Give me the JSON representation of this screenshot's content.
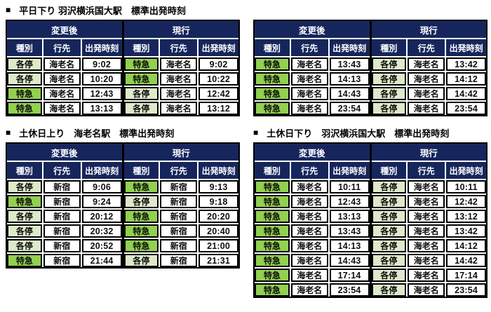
{
  "bullet": "■",
  "colors": {
    "header_navy": "#16265C",
    "express_green": "#92D050",
    "local_green": "#DDE9C9",
    "grid_black": "#000000"
  },
  "labels": {
    "after": "変更後",
    "current": "現行",
    "col_type": "種別",
    "col_dest": "行先",
    "col_time": "出発時刻"
  },
  "legend": {
    "express": "特急",
    "local": "各停"
  },
  "tables": [
    {
      "title": "平日下り 羽沢横浜国大駅　標準出発時刻",
      "rows": [
        [
          "各停",
          "海老名",
          "9:02",
          "特急",
          "海老名",
          "9:02"
        ],
        [
          "各停",
          "海老名",
          "10:20",
          "特急",
          "海老名",
          "10:22"
        ],
        [
          "特急",
          "海老名",
          "12:43",
          "各停",
          "海老名",
          "12:42"
        ],
        [
          "特急",
          "海老名",
          "13:13",
          "各停",
          "海老名",
          "13:12"
        ]
      ]
    },
    {
      "title": "",
      "rows": [
        [
          "特急",
          "海老名",
          "13:43",
          "各停",
          "海老名",
          "13:42"
        ],
        [
          "特急",
          "海老名",
          "14:13",
          "各停",
          "海老名",
          "14:12"
        ],
        [
          "特急",
          "海老名",
          "14:43",
          "各停",
          "海老名",
          "14:42"
        ],
        [
          "特急",
          "海老名",
          "23:54",
          "各停",
          "海老名",
          "23:54"
        ]
      ]
    },
    {
      "title": "土休日上り　海老名駅　標準出発時刻",
      "rows": [
        [
          "各停",
          "新宿",
          "9:06",
          "特急",
          "新宿",
          "9:13"
        ],
        [
          "特急",
          "新宿",
          "9:24",
          "各停",
          "新宿",
          "9:18"
        ],
        [
          "各停",
          "新宿",
          "20:12",
          "特急",
          "新宿",
          "20:20"
        ],
        [
          "各停",
          "新宿",
          "20:32",
          "特急",
          "新宿",
          "20:40"
        ],
        [
          "各停",
          "新宿",
          "20:52",
          "特急",
          "新宿",
          "21:00"
        ],
        [
          "特急",
          "新宿",
          "21:44",
          "各停",
          "新宿",
          "21:31"
        ]
      ]
    },
    {
      "title": "土休日下り　羽沢横浜国大駅　標準出発時刻",
      "rows": [
        [
          "特急",
          "海老名",
          "10:11",
          "各停",
          "海老名",
          "10:11"
        ],
        [
          "特急",
          "海老名",
          "12:43",
          "各停",
          "海老名",
          "12:42"
        ],
        [
          "特急",
          "海老名",
          "13:13",
          "各停",
          "海老名",
          "13:12"
        ],
        [
          "特急",
          "海老名",
          "13:43",
          "各停",
          "海老名",
          "13:42"
        ],
        [
          "特急",
          "海老名",
          "14:13",
          "各停",
          "海老名",
          "14:12"
        ],
        [
          "特急",
          "海老名",
          "14:43",
          "各停",
          "海老名",
          "14:42"
        ],
        [
          "特急",
          "海老名",
          "17:14",
          "各停",
          "海老名",
          "17:14"
        ],
        [
          "特急",
          "海老名",
          "23:54",
          "各停",
          "海老名",
          "23:54"
        ]
      ]
    }
  ]
}
